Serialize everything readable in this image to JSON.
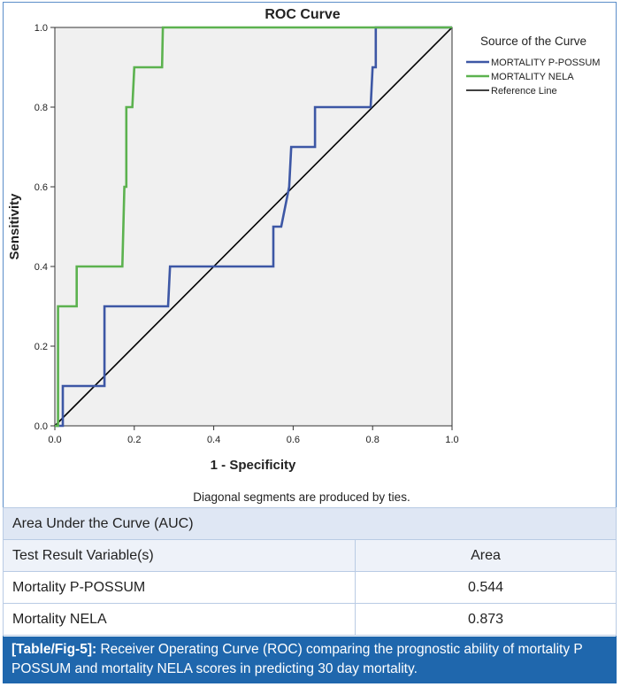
{
  "chart_data": {
    "type": "line",
    "title": "ROC Curve",
    "xlabel": "1 - Specificity",
    "ylabel": "Sensitivity",
    "xlim": [
      0,
      1
    ],
    "ylim": [
      0,
      1
    ],
    "x_ticks": [
      "0.0",
      "0.2",
      "0.4",
      "0.6",
      "0.8",
      "1.0"
    ],
    "y_ticks": [
      "0.0",
      "0.2",
      "0.4",
      "0.6",
      "0.8",
      "1.0"
    ],
    "grid": false,
    "legend_title": "Source of the Curve",
    "legend_position": "right",
    "note": "Diagonal segments are produced by ties.",
    "series": [
      {
        "name": "MORTALITY P-POSSUM",
        "color": "#3d57a5",
        "points": [
          [
            0.0,
            0.0
          ],
          [
            0.02,
            0.0
          ],
          [
            0.02,
            0.1
          ],
          [
            0.125,
            0.1
          ],
          [
            0.125,
            0.3
          ],
          [
            0.285,
            0.3
          ],
          [
            0.29,
            0.4
          ],
          [
            0.55,
            0.4
          ],
          [
            0.55,
            0.5
          ],
          [
            0.57,
            0.5
          ],
          [
            0.59,
            0.6
          ],
          [
            0.595,
            0.7
          ],
          [
            0.655,
            0.7
          ],
          [
            0.655,
            0.8
          ],
          [
            0.795,
            0.8
          ],
          [
            0.8,
            0.9
          ],
          [
            0.808,
            0.9
          ],
          [
            0.808,
            1.0
          ],
          [
            1.0,
            1.0
          ]
        ]
      },
      {
        "name": "MORTALITY NELA",
        "color": "#5cb24f",
        "points": [
          [
            0.0,
            0.0
          ],
          [
            0.008,
            0.0
          ],
          [
            0.008,
            0.3
          ],
          [
            0.055,
            0.3
          ],
          [
            0.055,
            0.4
          ],
          [
            0.17,
            0.4
          ],
          [
            0.175,
            0.6
          ],
          [
            0.18,
            0.6
          ],
          [
            0.18,
            0.8
          ],
          [
            0.195,
            0.8
          ],
          [
            0.2,
            0.9
          ],
          [
            0.27,
            0.9
          ],
          [
            0.272,
            1.0
          ],
          [
            1.0,
            1.0
          ]
        ]
      },
      {
        "name": "Reference Line",
        "color": "#000000",
        "points": [
          [
            0,
            0
          ],
          [
            1,
            1
          ]
        ]
      }
    ]
  },
  "auc_table": {
    "title": "Area Under the Curve (AUC)",
    "headers": [
      "Test Result Variable(s)",
      "Area"
    ],
    "rows": [
      {
        "variable": "Mortality P-POSSUM",
        "area": "0.544"
      },
      {
        "variable": "Mortality NELA",
        "area": "0.873"
      }
    ]
  },
  "caption": {
    "label": "[Table/Fig-5]:",
    "text": " Receiver Operating Curve (ROC) comparing the prognostic ability of mortality P POSSUM and mortality NELA scores in predicting 30 day mortality."
  },
  "colors": {
    "plot_background": "#f0f0f0",
    "frame_border": "#5b8ec9",
    "table_title_bg": "#dfe7f4",
    "caption_bg": "#1f67ad"
  }
}
